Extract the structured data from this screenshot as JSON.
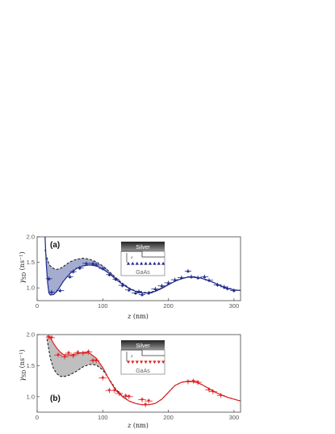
{
  "chart_data": [
    {
      "type": "scatter",
      "panel_label": "(a)",
      "xlabel_var": "z",
      "xlabel_unit": " (nm)",
      "ylabel_sym": "γ",
      "ylabel_sub": "SD",
      "ylabel_unit": " (ns⁻¹)",
      "xlim": [
        0,
        310
      ],
      "ylim": [
        0.75,
        2.0
      ],
      "xticks": [
        0,
        100,
        200,
        300
      ],
      "yticks": [
        1.0,
        1.5,
        2.0
      ],
      "colors": {
        "series": "#1f2a8c",
        "band": "#5a6aa8",
        "band_opacity": 0.55
      },
      "inset": {
        "top_label": "Silver",
        "bottom_label": "GaAs",
        "marker": "triangle-up",
        "marker_count": 9
      },
      "data": [
        {
          "x": 18,
          "y": 1.18,
          "xerr": 5,
          "yerr": 0.04
        },
        {
          "x": 22,
          "y": 0.92,
          "xerr": 5,
          "yerr": 0.04
        },
        {
          "x": 35,
          "y": 0.95,
          "xerr": 6,
          "yerr": 0.04
        },
        {
          "x": 50,
          "y": 1.22,
          "xerr": 5,
          "yerr": 0.04
        },
        {
          "x": 55,
          "y": 1.32,
          "xerr": 5,
          "yerr": 0.04
        },
        {
          "x": 65,
          "y": 1.39,
          "xerr": 6,
          "yerr": 0.04
        },
        {
          "x": 75,
          "y": 1.48,
          "xerr": 6,
          "yerr": 0.04
        },
        {
          "x": 85,
          "y": 1.48,
          "xerr": 6,
          "yerr": 0.04
        },
        {
          "x": 90,
          "y": 1.45,
          "xerr": 5,
          "yerr": 0.04
        },
        {
          "x": 100,
          "y": 1.38,
          "xerr": 6,
          "yerr": 0.04
        },
        {
          "x": 110,
          "y": 1.26,
          "xerr": 5,
          "yerr": 0.04
        },
        {
          "x": 120,
          "y": 1.17,
          "xerr": 5,
          "yerr": 0.04
        },
        {
          "x": 130,
          "y": 1.05,
          "xerr": 6,
          "yerr": 0.04
        },
        {
          "x": 140,
          "y": 0.96,
          "xerr": 6,
          "yerr": 0.04
        },
        {
          "x": 150,
          "y": 0.9,
          "xerr": 6,
          "yerr": 0.04
        },
        {
          "x": 155,
          "y": 0.93,
          "xerr": 5,
          "yerr": 0.04
        },
        {
          "x": 160,
          "y": 0.87,
          "xerr": 5,
          "yerr": 0.04
        },
        {
          "x": 170,
          "y": 0.9,
          "xerr": 6,
          "yerr": 0.04
        },
        {
          "x": 180,
          "y": 0.98,
          "xerr": 6,
          "yerr": 0.04
        },
        {
          "x": 190,
          "y": 1.04,
          "xerr": 6,
          "yerr": 0.04
        },
        {
          "x": 200,
          "y": 1.1,
          "xerr": 6,
          "yerr": 0.04
        },
        {
          "x": 210,
          "y": 1.16,
          "xerr": 6,
          "yerr": 0.04
        },
        {
          "x": 220,
          "y": 1.2,
          "xerr": 6,
          "yerr": 0.04
        },
        {
          "x": 230,
          "y": 1.33,
          "xerr": 5,
          "yerr": 0.04
        },
        {
          "x": 235,
          "y": 1.22,
          "xerr": 6,
          "yerr": 0.04
        },
        {
          "x": 245,
          "y": 1.2,
          "xerr": 6,
          "yerr": 0.04
        },
        {
          "x": 255,
          "y": 1.22,
          "xerr": 6,
          "yerr": 0.04
        },
        {
          "x": 262,
          "y": 1.15,
          "xerr": 6,
          "yerr": 0.04
        },
        {
          "x": 275,
          "y": 1.06,
          "xerr": 6,
          "yerr": 0.04
        },
        {
          "x": 285,
          "y": 1.02,
          "xerr": 6,
          "yerr": 0.04
        },
        {
          "x": 290,
          "y": 0.99,
          "xerr": 6,
          "yerr": 0.04
        },
        {
          "x": 300,
          "y": 0.95,
          "xerr": 6,
          "yerr": 0.04
        }
      ],
      "fit_x": [
        12,
        14,
        16,
        18,
        20,
        25,
        30,
        35,
        40,
        50,
        60,
        70,
        80,
        90,
        100,
        110,
        120,
        130,
        140,
        150,
        160,
        170,
        180,
        190,
        200,
        210,
        220,
        230,
        240,
        250,
        260,
        270,
        280,
        290,
        300,
        310
      ],
      "fit_y": [
        2.0,
        1.45,
        1.1,
        0.9,
        0.86,
        0.87,
        0.93,
        1.03,
        1.13,
        1.28,
        1.38,
        1.43,
        1.45,
        1.43,
        1.37,
        1.28,
        1.17,
        1.07,
        0.99,
        0.93,
        0.9,
        0.9,
        0.93,
        0.99,
        1.06,
        1.13,
        1.18,
        1.21,
        1.21,
        1.19,
        1.15,
        1.1,
        1.04,
        0.99,
        0.96,
        0.95
      ],
      "dash_y": [
        1.75,
        1.62,
        1.55,
        1.47,
        1.43,
        1.38,
        1.36,
        1.38,
        1.42,
        1.51,
        1.56,
        1.58,
        1.56,
        1.51,
        1.43,
        1.32,
        1.2,
        1.09,
        1.0,
        0.94,
        0.91,
        0.91,
        0.94,
        1.0,
        1.07,
        1.13,
        1.18,
        1.21,
        1.21,
        1.19,
        1.15,
        1.1,
        1.04,
        0.99,
        0.96,
        0.95
      ]
    },
    {
      "type": "scatter",
      "panel_label": "(b)",
      "xlabel_var": "z",
      "xlabel_unit": " (nm)",
      "ylabel_sym": "γ",
      "ylabel_sub": "SD",
      "ylabel_unit": " (ns⁻¹)",
      "xlim": [
        0,
        310
      ],
      "ylim": [
        0.75,
        2.0
      ],
      "xticks": [
        0,
        100,
        200,
        300
      ],
      "yticks": [
        1.0,
        1.5,
        2.0
      ],
      "colors": {
        "series": "#e02020",
        "band": "#8a8a8a",
        "band_opacity": 0.55
      },
      "inset": {
        "top_label": "Silver",
        "bottom_label": "GaAs",
        "marker": "triangle-down",
        "marker_count": 9
      },
      "data": [
        {
          "x": 18,
          "y": 1.96,
          "xerr": 5,
          "yerr": 0.04
        },
        {
          "x": 22,
          "y": 1.95,
          "xerr": 5,
          "yerr": 0.04
        },
        {
          "x": 32,
          "y": 1.67,
          "xerr": 6,
          "yerr": 0.04
        },
        {
          "x": 42,
          "y": 1.64,
          "xerr": 6,
          "yerr": 0.04
        },
        {
          "x": 48,
          "y": 1.7,
          "xerr": 5,
          "yerr": 0.04
        },
        {
          "x": 55,
          "y": 1.66,
          "xerr": 5,
          "yerr": 0.04
        },
        {
          "x": 62,
          "y": 1.71,
          "xerr": 6,
          "yerr": 0.04
        },
        {
          "x": 70,
          "y": 1.7,
          "xerr": 6,
          "yerr": 0.04
        },
        {
          "x": 78,
          "y": 1.72,
          "xerr": 6,
          "yerr": 0.04
        },
        {
          "x": 85,
          "y": 1.58,
          "xerr": 5,
          "yerr": 0.04
        },
        {
          "x": 90,
          "y": 1.58,
          "xerr": 5,
          "yerr": 0.04
        },
        {
          "x": 100,
          "y": 1.3,
          "xerr": 6,
          "yerr": 0.04
        },
        {
          "x": 110,
          "y": 1.1,
          "xerr": 6,
          "yerr": 0.04
        },
        {
          "x": 118,
          "y": 1.1,
          "xerr": 5,
          "yerr": 0.04
        },
        {
          "x": 125,
          "y": 1.05,
          "xerr": 6,
          "yerr": 0.04
        },
        {
          "x": 135,
          "y": 1.01,
          "xerr": 6,
          "yerr": 0.04
        },
        {
          "x": 140,
          "y": 1.0,
          "xerr": 6,
          "yerr": 0.04
        },
        {
          "x": 160,
          "y": 0.95,
          "xerr": 6,
          "yerr": 0.04
        },
        {
          "x": 165,
          "y": 0.87,
          "xerr": 5,
          "yerr": 0.04
        },
        {
          "x": 170,
          "y": 0.93,
          "xerr": 6,
          "yerr": 0.04
        },
        {
          "x": 230,
          "y": 1.24,
          "xerr": 6,
          "yerr": 0.04
        },
        {
          "x": 238,
          "y": 1.25,
          "xerr": 6,
          "yerr": 0.04
        },
        {
          "x": 245,
          "y": 1.23,
          "xerr": 6,
          "yerr": 0.04
        },
        {
          "x": 262,
          "y": 1.11,
          "xerr": 6,
          "yerr": 0.04
        },
        {
          "x": 268,
          "y": 1.08,
          "xerr": 6,
          "yerr": 0.04
        },
        {
          "x": 280,
          "y": 1.02,
          "xerr": 6,
          "yerr": 0.04
        }
      ],
      "fit_x": [
        15,
        18,
        20,
        25,
        30,
        35,
        40,
        50,
        60,
        70,
        80,
        90,
        100,
        110,
        120,
        130,
        140,
        150,
        160,
        170,
        180,
        190,
        200,
        210,
        220,
        230,
        240,
        250,
        260,
        270,
        280,
        290,
        300,
        310
      ],
      "fit_y": [
        1.98,
        1.97,
        1.95,
        1.86,
        1.78,
        1.72,
        1.68,
        1.67,
        1.69,
        1.71,
        1.7,
        1.62,
        1.47,
        1.27,
        1.1,
        1.0,
        0.93,
        0.89,
        0.87,
        0.87,
        0.89,
        0.96,
        1.07,
        1.18,
        1.23,
        1.25,
        1.24,
        1.2,
        1.14,
        1.08,
        1.03,
        0.99,
        0.96,
        0.93
      ],
      "dash_y": [
        1.93,
        1.75,
        1.62,
        1.45,
        1.37,
        1.33,
        1.32,
        1.35,
        1.41,
        1.48,
        1.52,
        1.51,
        1.43,
        1.28,
        1.12,
        1.01,
        0.93,
        0.89,
        0.87,
        0.87,
        0.89,
        0.96,
        1.07,
        1.18,
        1.23,
        1.25,
        1.24,
        1.2,
        1.14,
        1.08,
        1.03,
        0.99,
        0.96,
        0.93
      ]
    }
  ]
}
